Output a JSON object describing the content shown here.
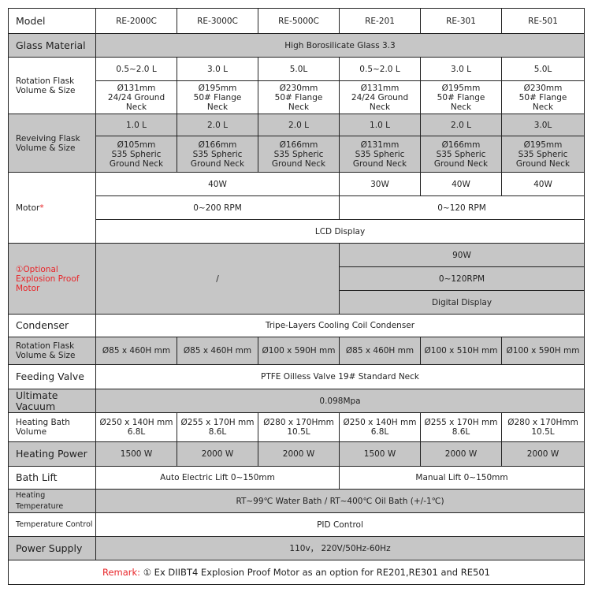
{
  "remark_color": "#e8262a",
  "grey_color": "#c6c6c6",
  "rows": [
    {
      "h": 32,
      "grey": false,
      "label": "Model",
      "cells": [
        {
          "t": "RE-2000C"
        },
        {
          "t": "RE-3000C"
        },
        {
          "t": "RE-5000C"
        },
        {
          "t": "RE-201"
        },
        {
          "t": "RE-301"
        },
        {
          "t": "RE-501"
        }
      ]
    },
    {
      "h": 30,
      "grey": true,
      "label": "Glass Material",
      "cells": [
        {
          "t": "High Borosilicate Glass 3.3",
          "c": 6
        }
      ]
    },
    {
      "h": 30,
      "grey": false,
      "label": "Rotation  Flask Volume & Size",
      "lsize": "sm",
      "lrs": 2,
      "cells": [
        {
          "t": "0.5~2.0 L"
        },
        {
          "t": "3.0 L"
        },
        {
          "t": "5.0L"
        },
        {
          "t": "0.5~2.0 L"
        },
        {
          "t": "3.0 L"
        },
        {
          "t": "5.0L"
        }
      ]
    },
    {
      "h": 42,
      "grey": false,
      "cells": [
        {
          "t": "Ø131mm\n24/24 Ground\nNeck"
        },
        {
          "t": "Ø195mm\n50# Flange\nNeck"
        },
        {
          "t": "Ø230mm\n50# Flange\nNeck"
        },
        {
          "t": "Ø131mm\n24/24 Ground\nNeck"
        },
        {
          "t": "Ø195mm\n50# Flange\nNeck"
        },
        {
          "t": "Ø230mm\n50# Flange\nNeck"
        }
      ]
    },
    {
      "h": 28,
      "grey": true,
      "label": "Reveiving  Flask Volume & Size",
      "lsize": "sm",
      "lrs": 2,
      "cells": [
        {
          "t": "1.0 L"
        },
        {
          "t": "2.0 L"
        },
        {
          "t": "2.0 L"
        },
        {
          "t": "1.0 L"
        },
        {
          "t": "2.0 L"
        },
        {
          "t": "3.0L"
        }
      ]
    },
    {
      "h": 46,
      "grey": true,
      "cells": [
        {
          "t": "Ø105mm\nS35 Spheric\nGround Neck"
        },
        {
          "t": "Ø166mm\nS35 Spheric\nGround Neck"
        },
        {
          "t": "Ø166mm\nS35 Spheric\nGround Neck"
        },
        {
          "t": "Ø131mm\nS35 Spheric\nGround Neck"
        },
        {
          "t": "Ø166mm\nS35 Spheric\nGround Neck"
        },
        {
          "t": "Ø195mm\nS35 Spheric\nGround Neck"
        }
      ]
    },
    {
      "h": 30,
      "grey": false,
      "label": "Motor",
      "lsize": "sm",
      "lmark": "*",
      "lrs": 3,
      "cells": [
        {
          "t": "40W",
          "c": 3
        },
        {
          "t": "30W"
        },
        {
          "t": "40W"
        },
        {
          "t": "40W"
        }
      ]
    },
    {
      "h": 30,
      "grey": false,
      "cells": [
        {
          "t": "0~200 RPM",
          "c": 3
        },
        {
          "t": "0~120 RPM",
          "c": 3
        }
      ]
    },
    {
      "h": 30,
      "grey": false,
      "cells": [
        {
          "t": "LCD Display",
          "c": 6
        }
      ]
    },
    {
      "h": 30,
      "grey": true,
      "label": "①Optional Explosion Proof Motor",
      "lsize": "sm",
      "lred": true,
      "lrs": 3,
      "cells": [
        {
          "t": "/",
          "c": 3,
          "r": 3
        },
        {
          "t": "90W",
          "c": 3
        }
      ]
    },
    {
      "h": 30,
      "grey": true,
      "cells": [
        {
          "t": "0~120RPM",
          "c": 3
        }
      ]
    },
    {
      "h": 30,
      "grey": true,
      "cells": [
        {
          "t": "Digital Display",
          "c": 3
        }
      ]
    },
    {
      "h": 29,
      "grey": false,
      "label": "Condenser",
      "cells": [
        {
          "t": "Tripe-Layers Cooling Coil Condenser",
          "c": 6
        }
      ]
    },
    {
      "h": 35,
      "grey": true,
      "label": "Rotation  Flask Volume & Size",
      "lsize": "sm",
      "cells": [
        {
          "t": "Ø85 x 460H mm"
        },
        {
          "t": "Ø85 x 460H mm"
        },
        {
          "t": "Ø100 x 590H mm"
        },
        {
          "t": "Ø85 x 460H mm"
        },
        {
          "t": "Ø100 x 510H mm"
        },
        {
          "t": "Ø100 x 590H mm"
        }
      ]
    },
    {
      "h": 31,
      "grey": false,
      "label": "Feeding Valve",
      "cells": [
        {
          "t": "PTFE Oilless Valve 19# Standard Neck",
          "c": 6
        }
      ]
    },
    {
      "h": 30,
      "grey": true,
      "label": "Ultimate Vacuum",
      "cells": [
        {
          "t": "0.098Mpa",
          "c": 6
        }
      ]
    },
    {
      "h": 37,
      "grey": false,
      "label": "Heating Bath Volume",
      "lsize": "sm",
      "cells": [
        {
          "t": "Ø250 x 140H mm\n6.8L"
        },
        {
          "t": "Ø255 x 170H mm\n8.6L"
        },
        {
          "t": "Ø280 x 170Hmm\n10.5L"
        },
        {
          "t": "Ø250 x 140H mm\n6.8L"
        },
        {
          "t": "Ø255 x 170H mm\n8.6L"
        },
        {
          "t": "Ø280 x 170Hmm\n10.5L"
        }
      ]
    },
    {
      "h": 31,
      "grey": true,
      "label": "Heating Power",
      "cells": [
        {
          "t": "1500 W"
        },
        {
          "t": "2000 W"
        },
        {
          "t": "2000 W"
        },
        {
          "t": "1500 W"
        },
        {
          "t": "2000 W"
        },
        {
          "t": "2000 W"
        }
      ]
    },
    {
      "h": 29,
      "grey": false,
      "label": "Bath Lift",
      "cells": [
        {
          "t": "Auto Electric Lift 0~150mm",
          "c": 3
        },
        {
          "t": "Manual Lift 0~150mm",
          "c": 3
        }
      ]
    },
    {
      "h": 30,
      "grey": true,
      "label": "Heating Temperature",
      "lsize": "xs",
      "cells": [
        {
          "t": "RT~99℃ Water Bath / RT~400℃ Oil Bath (+/-1℃)",
          "c": 6
        }
      ]
    },
    {
      "h": 30,
      "grey": false,
      "label": "Temperature Control",
      "lsize": "xs",
      "cells": [
        {
          "t": "PID Control",
          "c": 6
        }
      ]
    },
    {
      "h": 30,
      "grey": true,
      "label": "Power Supply",
      "cells": [
        {
          "t": "110v，  220V/50Hz-60Hz",
          "c": 6
        }
      ]
    }
  ],
  "remark": {
    "label": "Remark:",
    "text": " ① Ex DIIBT4 Explosion Proof Motor as an option for RE201,RE301 and RE501"
  }
}
